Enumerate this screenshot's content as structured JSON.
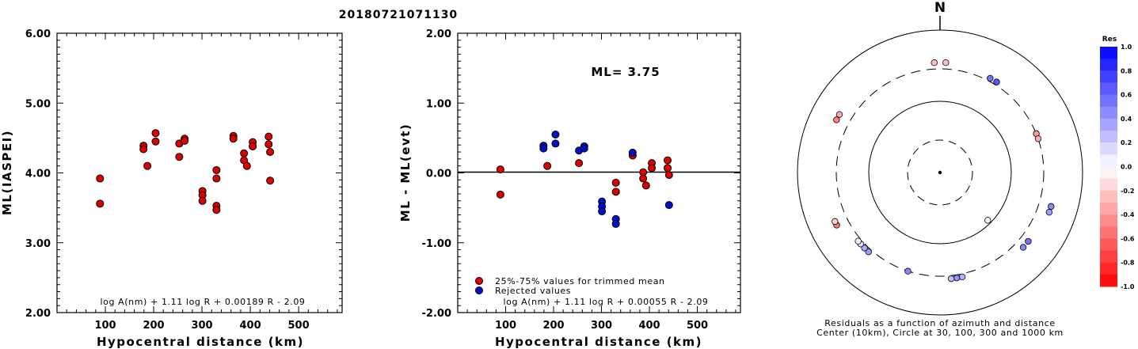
{
  "figure_title": "20180721071130",
  "chart_data": [
    {
      "type": "scatter",
      "xlabel": "Hypocentral distance (km)",
      "ylabel": "ML(IASPEI)",
      "xlim": [
        0,
        590
      ],
      "ylim": [
        2.0,
        6.0
      ],
      "xticks": [
        "100",
        "200",
        "300",
        "400",
        "500"
      ],
      "yticks": [
        "2.00",
        "3.00",
        "4.00",
        "5.00",
        "6.00"
      ],
      "formula": "log A(nm) + 1.11 log R + 0.00189 R - 2.09",
      "series": [
        {
          "color": "#dd0000",
          "points": [
            [
              89,
              3.92
            ],
            [
              89,
              3.56
            ],
            [
              179,
              4.39
            ],
            [
              179,
              4.34
            ],
            [
              187,
              4.1
            ],
            [
              204,
              4.57
            ],
            [
              204,
              4.45
            ],
            [
              253,
              4.42
            ],
            [
              253,
              4.23
            ],
            [
              264,
              4.49
            ],
            [
              264,
              4.46
            ],
            [
              301,
              3.74
            ],
            [
              301,
              3.68
            ],
            [
              301,
              3.6
            ],
            [
              330,
              4.04
            ],
            [
              330,
              3.92
            ],
            [
              330,
              3.53
            ],
            [
              330,
              3.47
            ],
            [
              365,
              4.53
            ],
            [
              365,
              4.49
            ],
            [
              387,
              4.28
            ],
            [
              387,
              4.18
            ],
            [
              393,
              4.1
            ],
            [
              405,
              4.44
            ],
            [
              405,
              4.38
            ],
            [
              438,
              4.52
            ],
            [
              438,
              4.41
            ],
            [
              441,
              4.3
            ],
            [
              441,
              3.89
            ]
          ]
        }
      ]
    },
    {
      "type": "scatter",
      "xlabel": "Hypocentral distance (km)",
      "ylabel": "ML - ML(evt)",
      "xlim": [
        0,
        590
      ],
      "ylim": [
        -2.0,
        2.0
      ],
      "xticks": [
        "100",
        "200",
        "300",
        "400",
        "500"
      ],
      "yticks": [
        "-2.00",
        "-1.00",
        "0.00",
        "1.00",
        "2.00"
      ],
      "annotation": "ML= 3.75",
      "formula": "log A(nm) + 1.11 log R + 0.00055 R - 2.09",
      "legend": [
        {
          "label": "25%-75% values for trimmed mean",
          "color": "#dd0000"
        },
        {
          "label": "Rejected values",
          "color": "#0010cc"
        }
      ],
      "series": [
        {
          "name": "25%-75% values for trimmed mean",
          "color": "#dd0000",
          "points": [
            [
              89,
              0.05
            ],
            [
              89,
              -0.31
            ],
            [
              187,
              0.1
            ],
            [
              253,
              0.14
            ],
            [
              330,
              -0.14
            ],
            [
              330,
              -0.27
            ],
            [
              365,
              0.25
            ],
            [
              387,
              0.01
            ],
            [
              387,
              -0.08
            ],
            [
              393,
              -0.18
            ],
            [
              405,
              0.14
            ],
            [
              405,
              0.07
            ],
            [
              438,
              0.18
            ],
            [
              438,
              0.07
            ],
            [
              441,
              -0.03
            ]
          ]
        },
        {
          "name": "Rejected values",
          "color": "#0010cc",
          "points": [
            [
              179,
              0.39
            ],
            [
              179,
              0.35
            ],
            [
              204,
              0.55
            ],
            [
              204,
              0.42
            ],
            [
              253,
              0.32
            ],
            [
              264,
              0.38
            ],
            [
              264,
              0.35
            ],
            [
              301,
              -0.41
            ],
            [
              301,
              -0.48
            ],
            [
              301,
              -0.55
            ],
            [
              330,
              -0.66
            ],
            [
              330,
              -0.73
            ],
            [
              365,
              0.29
            ],
            [
              441,
              -0.46
            ]
          ]
        }
      ]
    },
    {
      "type": "scatter",
      "subtype": "polar-residuals",
      "north_label": "N",
      "caption_line1": "Residuals as a function of azimuth and distance",
      "caption_line2": "Center (10km), Circle at 30, 100, 300 and 1000 km",
      "rings_km": [
        30,
        100,
        300,
        1000
      ],
      "colorbar": {
        "title": "Res",
        "ticks": [
          "1.0",
          "0.8",
          "0.6",
          "0.4",
          "0.2",
          "0.0",
          "-0.2",
          "-0.4",
          "-0.6",
          "-0.8",
          "-1.0"
        ],
        "positive_color": "#0000ff",
        "negative_color": "#ff0000"
      },
      "stations": [
        {
          "azimuth": -3,
          "distance": 365,
          "residual": -0.25
        },
        {
          "azimuth": 3,
          "distance": 365,
          "residual": -0.25
        },
        {
          "azimuth": 28,
          "distance": 330,
          "residual": 0.55
        },
        {
          "azimuth": 32,
          "distance": 330,
          "residual": 0.66
        },
        {
          "azimuth": 68,
          "distance": 301,
          "residual": -0.41
        },
        {
          "azimuth": 71,
          "distance": 301,
          "residual": -0.33
        },
        {
          "azimuth": 107,
          "distance": 441,
          "residual": 0.46
        },
        {
          "azimuth": 110,
          "distance": 441,
          "residual": 0.38
        },
        {
          "azimuth": 128,
          "distance": 387,
          "residual": 0.55
        },
        {
          "azimuth": 132,
          "distance": 387,
          "residual": 0.48
        },
        {
          "azimuth": 135,
          "distance": 89,
          "residual": -0.05
        },
        {
          "azimuth": 168,
          "distance": 330,
          "residual": 0.3
        },
        {
          "azimuth": 171,
          "distance": 330,
          "residual": 0.42
        },
        {
          "azimuth": 174,
          "distance": 330,
          "residual": 0.25
        },
        {
          "azimuth": 198,
          "distance": 301,
          "residual": 0.48
        },
        {
          "azimuth": 222,
          "distance": 330,
          "residual": 0.38
        },
        {
          "azimuth": 225,
          "distance": 330,
          "residual": 0.32
        },
        {
          "azimuth": 228,
          "distance": 330,
          "residual": 0.12
        },
        {
          "azimuth": 230,
          "distance": 330,
          "residual": 0.05
        },
        {
          "azimuth": 243,
          "distance": 438,
          "residual": -0.55
        },
        {
          "azimuth": 245,
          "distance": 438,
          "residual": -0.18
        },
        {
          "azimuth": 297,
          "distance": 441,
          "residual": -0.5
        },
        {
          "azimuth": 300,
          "distance": 441,
          "residual": -0.35
        }
      ]
    }
  ]
}
